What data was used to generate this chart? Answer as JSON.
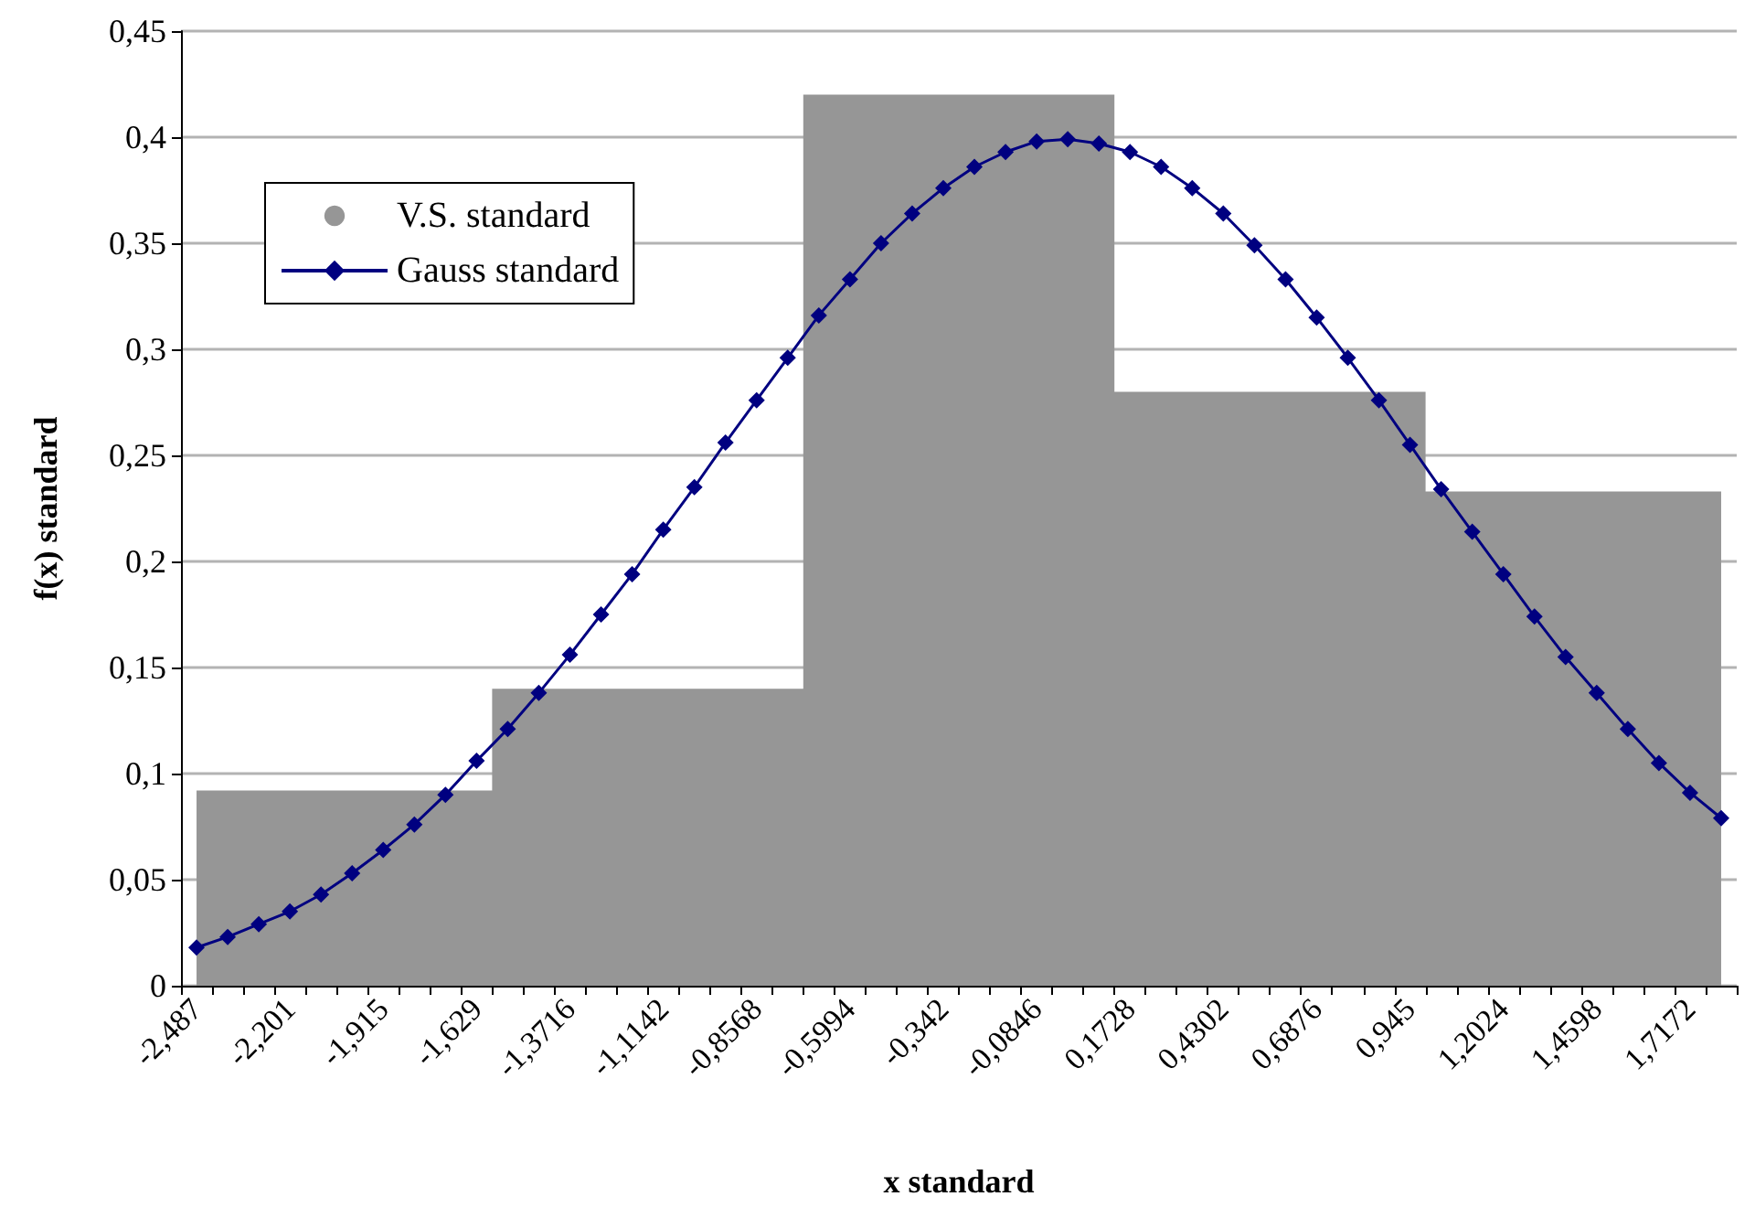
{
  "chart_data": {
    "type": "area",
    "xlabel": "x standard",
    "ylabel": "f(x) standard",
    "categories": [
      "-2,487",
      null,
      null,
      "-2,201",
      null,
      null,
      "-1,915",
      null,
      null,
      "-1,629",
      null,
      null,
      "-1,3716",
      null,
      null,
      "-1,1142",
      null,
      null,
      "-0,8568",
      null,
      null,
      "-0,5994",
      null,
      null,
      "-0,342",
      null,
      null,
      "-0,0846",
      null,
      null,
      "0,1728",
      null,
      null,
      "0,4302",
      null,
      null,
      "0,6876",
      null,
      null,
      "0,945",
      null,
      null,
      "1,2024",
      null,
      null,
      "1,4598",
      null,
      null,
      "1,7172",
      null
    ],
    "series": [
      {
        "name": "V.S. standard",
        "marker": "none",
        "color": "#969696",
        "values": [
          0.092,
          0.092,
          0.092,
          0.092,
          0.092,
          0.092,
          0.092,
          0.092,
          0.092,
          0.092,
          0.14,
          0.14,
          0.14,
          0.14,
          0.14,
          0.14,
          0.14,
          0.14,
          0.14,
          0.14,
          0.42,
          0.42,
          0.42,
          0.42,
          0.42,
          0.42,
          0.42,
          0.42,
          0.42,
          0.42,
          0.28,
          0.28,
          0.28,
          0.28,
          0.28,
          0.28,
          0.28,
          0.28,
          0.28,
          0.28,
          0.233,
          0.233,
          0.233,
          0.233,
          0.233,
          0.233,
          0.233,
          0.233,
          0.233,
          0.233
        ]
      },
      {
        "name": "Gauss standard",
        "type": "line",
        "color": "#000080",
        "values": [
          0.018,
          0.023,
          0.029,
          0.035,
          0.043,
          0.053,
          0.064,
          0.076,
          0.09,
          0.106,
          0.121,
          0.138,
          0.156,
          0.175,
          0.194,
          0.215,
          0.235,
          0.256,
          0.276,
          0.296,
          0.316,
          0.333,
          0.35,
          0.364,
          0.376,
          0.386,
          0.393,
          0.398,
          0.399,
          0.397,
          0.393,
          0.386,
          0.376,
          0.364,
          0.349,
          0.333,
          0.315,
          0.296,
          0.276,
          0.255,
          0.234,
          0.214,
          0.194,
          0.174,
          0.155,
          0.138,
          0.121,
          0.105,
          0.091,
          0.079
        ]
      }
    ],
    "ylim": [
      0,
      0.45
    ],
    "yticks": [
      {
        "value": 0,
        "label": "0"
      },
      {
        "value": 0.05,
        "label": "0,05"
      },
      {
        "value": 0.1,
        "label": "0,1"
      },
      {
        "value": 0.15,
        "label": "0,15"
      },
      {
        "value": 0.2,
        "label": "0,2"
      },
      {
        "value": 0.25,
        "label": "0,25"
      },
      {
        "value": 0.3,
        "label": "0,3"
      },
      {
        "value": 0.35,
        "label": "0,35"
      },
      {
        "value": 0.4,
        "label": "0,4"
      },
      {
        "value": 0.45,
        "label": "0,45"
      }
    ],
    "grid": "y",
    "legend": "top left",
    "marker": "diamond",
    "line_style": "solid"
  }
}
